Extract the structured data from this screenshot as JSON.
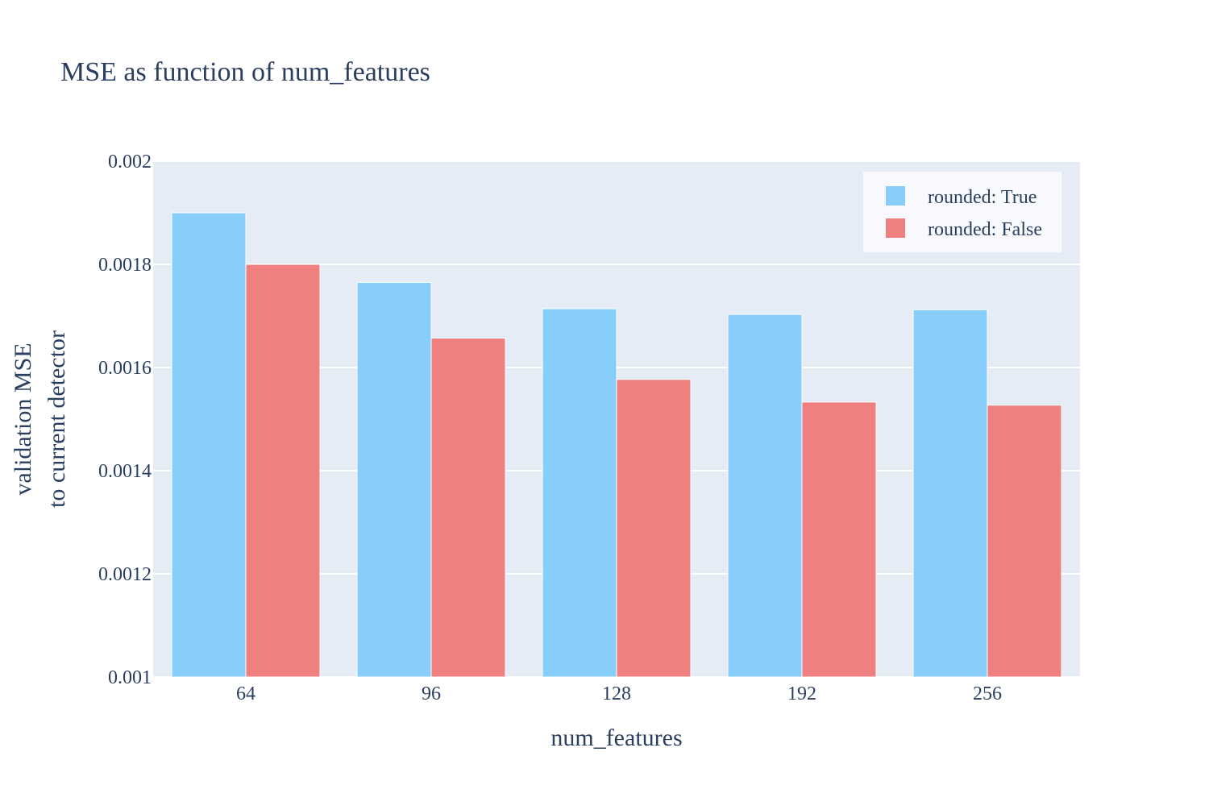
{
  "chart_data": {
    "type": "bar",
    "title": "MSE as function of num_features",
    "xlabel": "num_features",
    "ylabel_lines": [
      "validation MSE",
      "to current detector"
    ],
    "categories": [
      "64",
      "96",
      "128",
      "192",
      "256"
    ],
    "yticks": [
      "0.001",
      "0.0012",
      "0.0014",
      "0.0016",
      "0.0018",
      "0.002"
    ],
    "ylim": [
      0.001,
      0.002
    ],
    "grid": true,
    "legend_position": "top-right",
    "series": [
      {
        "name": "rounded: True",
        "color": "#87cefa",
        "values": [
          0.0019,
          0.001765,
          0.001714,
          0.001703,
          0.001712
        ]
      },
      {
        "name": "rounded: False",
        "color": "#f08080",
        "values": [
          0.0018,
          0.001657,
          0.001577,
          0.001533,
          0.001527
        ]
      }
    ],
    "colors": {
      "plot_background": "#e5ecf6",
      "legend_background": "#f8f9fd",
      "grid": "#ffffff",
      "text": "#2a3f5f"
    }
  }
}
